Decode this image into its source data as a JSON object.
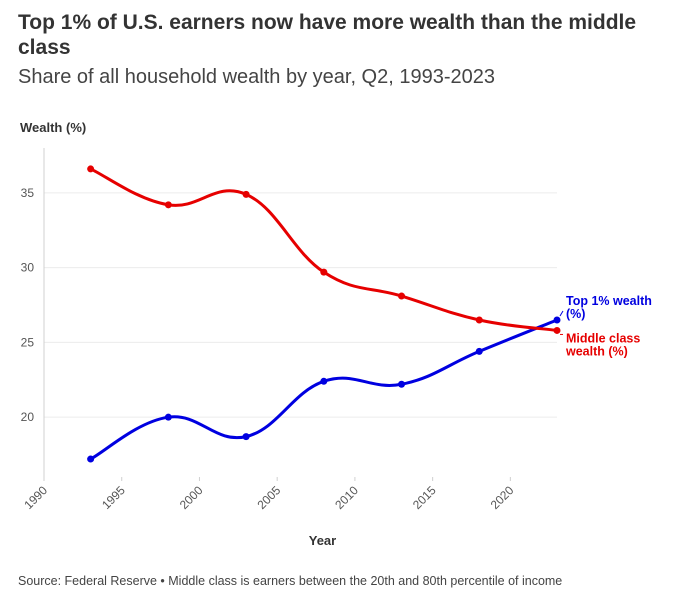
{
  "title": "Top 1% of U.S. earners now have more wealth than the middle class",
  "subtitle": "Share of all household wealth by year, Q2, 1993-2023",
  "source": "Source: Federal Reserve • Middle class is earners between the 20th and 80th percentile of income",
  "chart_data": {
    "type": "line",
    "title": "Top 1% of U.S. earners now have more wealth than the middle class",
    "subtitle": "Share of all household wealth by year, Q2, 1993-2023",
    "xlabel": "Year",
    "ylabel": "Wealth (%)",
    "xlim": [
      1990,
      2023
    ],
    "ylim": [
      16,
      38
    ],
    "xticks": [
      1990,
      1995,
      2000,
      2005,
      2010,
      2015,
      2020
    ],
    "yticks": [
      20,
      25,
      30,
      35
    ],
    "grid": "horizontal",
    "x": [
      1993,
      1998,
      2003,
      2008,
      2013,
      2018,
      2023
    ],
    "series": [
      {
        "name": "Top 1% wealth (%)",
        "label_lines": [
          "Top 1% wealth",
          "(%)"
        ],
        "color": "#0000e0",
        "values": [
          17.2,
          20.0,
          18.7,
          22.4,
          22.2,
          24.4,
          26.5
        ]
      },
      {
        "name": "Middle class wealth (%)",
        "label_lines": [
          "Middle class",
          "wealth (%)"
        ],
        "color": "#e60000",
        "values": [
          36.6,
          34.2,
          34.9,
          29.7,
          28.1,
          26.5,
          25.8
        ]
      }
    ],
    "legend": "inline-right"
  }
}
